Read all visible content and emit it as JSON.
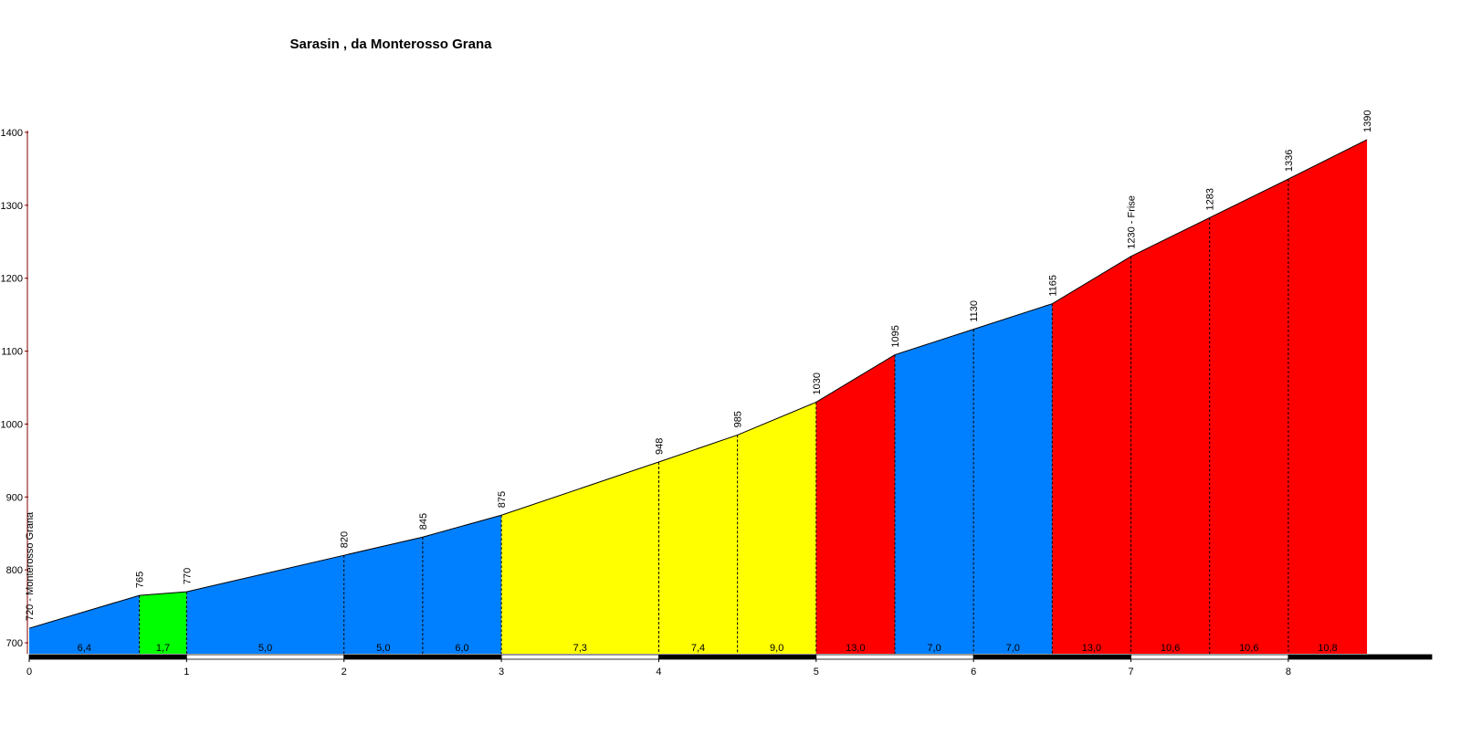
{
  "chart_data": {
    "type": "area",
    "title": "Sarasin , da Monterosso Grana",
    "x": [
      0,
      0.7,
      1.0,
      2.0,
      2.5,
      3.0,
      4.0,
      4.5,
      5.0,
      5.5,
      6.0,
      6.5,
      7.0,
      7.5,
      8.0,
      8.5
    ],
    "values": [
      720,
      765,
      770,
      820,
      845,
      875,
      948,
      985,
      1030,
      1095,
      1130,
      1165,
      1230,
      1283,
      1336,
      1390
    ],
    "value_labels": [
      "720 - Monterosso Grana",
      "765",
      "770",
      "820",
      "845",
      "875",
      "948",
      "985",
      "1030",
      "1095",
      "1130",
      "1165",
      "1230 - Frise",
      "1283",
      "1336",
      "1390"
    ],
    "gradients": {
      "values": [
        6.4,
        1.7,
        5.0,
        5.0,
        6.0,
        7.3,
        7.4,
        9.0,
        13.0,
        7.0,
        7.0,
        13.0,
        10.6,
        10.6,
        10.8
      ],
      "value_labels": [
        "6,4",
        "1,7",
        "5,0",
        "5,0",
        "6,0",
        "7,3",
        "7,4",
        "9,0",
        "13,0",
        "7,0",
        "7,0",
        "13,0",
        "10,6",
        "10,6",
        "10,8"
      ],
      "colors": [
        "#0080ff",
        "#00ff00",
        "#0080ff",
        "#0080ff",
        "#0080ff",
        "#ffff00",
        "#ffff00",
        "#ffff00",
        "#ff0000",
        "#0080ff",
        "#0080ff",
        "#ff0000",
        "#ff0000",
        "#ff0000",
        "#ff0000"
      ]
    },
    "xlim": [
      0,
      8.9
    ],
    "ylim": [
      685,
      1400
    ],
    "xticks": [
      0,
      1,
      2,
      3,
      4,
      5,
      6,
      7,
      8
    ],
    "yticks": [
      700,
      800,
      900,
      1000,
      1100,
      1200,
      1300,
      1400
    ]
  }
}
